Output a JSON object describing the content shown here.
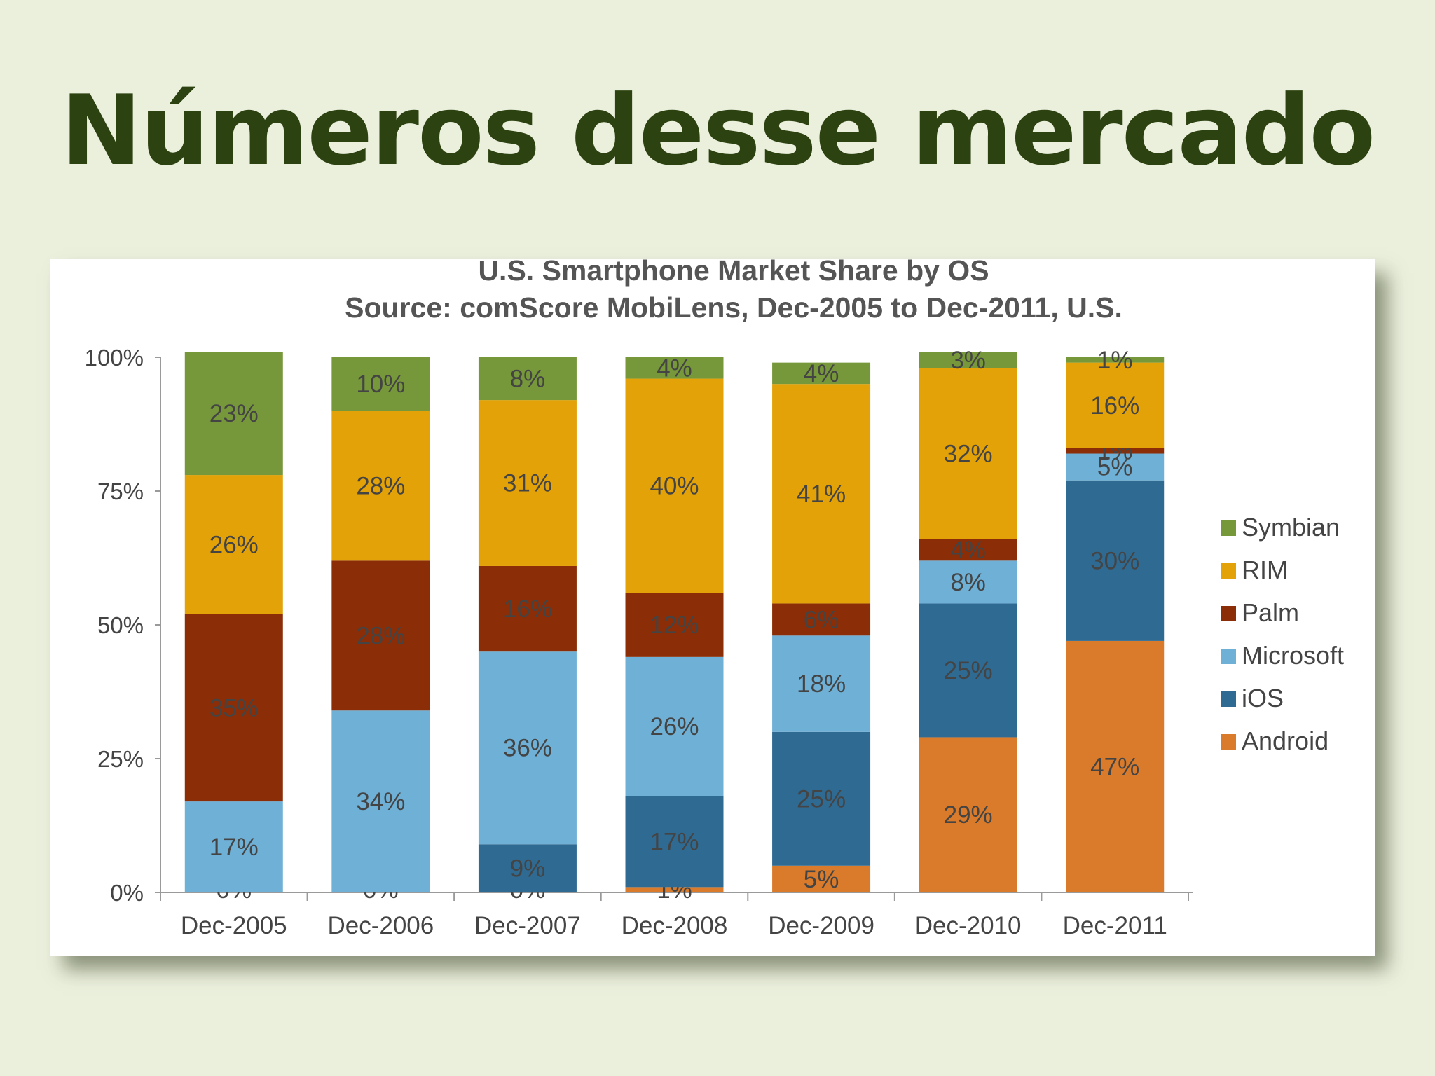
{
  "slide": {
    "title": "Números desse mercado"
  },
  "chart_data": {
    "type": "bar",
    "stacked": true,
    "title": "U.S. Smartphone Market Share by OS",
    "subtitle": "Source: comScore MobiLens, Dec-2005 to Dec-2011, U.S.",
    "categories": [
      "Dec-2005",
      "Dec-2006",
      "Dec-2007",
      "Dec-2008",
      "Dec-2009",
      "Dec-2010",
      "Dec-2011"
    ],
    "ylim": [
      0,
      100
    ],
    "yticks": [
      "0%",
      "25%",
      "50%",
      "75%",
      "100%"
    ],
    "legend_position": "right",
    "series": [
      {
        "name": "Android",
        "color": "#d97b2b",
        "values": [
          0,
          0,
          0,
          1,
          5,
          29,
          47
        ],
        "labels": [
          "0%",
          "0%",
          "0%",
          "1%",
          "5%",
          "29%",
          "47%"
        ]
      },
      {
        "name": "iOS",
        "color": "#2f6a92",
        "values": [
          0,
          0,
          9,
          17,
          25,
          25,
          30
        ],
        "labels": [
          "",
          "",
          "9%",
          "17%",
          "25%",
          "25%",
          "30%"
        ]
      },
      {
        "name": "Microsoft",
        "color": "#6fb0d6",
        "values": [
          17,
          34,
          36,
          26,
          18,
          8,
          5
        ],
        "labels": [
          "17%",
          "34%",
          "36%",
          "26%",
          "18%",
          "8%",
          "5%"
        ]
      },
      {
        "name": "Palm",
        "color": "#8b2d06",
        "values": [
          35,
          28,
          16,
          12,
          6,
          4,
          1
        ],
        "labels": [
          "35%",
          "28%",
          "16%",
          "12%",
          "6%",
          "4%",
          "1%"
        ]
      },
      {
        "name": "RIM",
        "color": "#e3a207",
        "values": [
          26,
          28,
          31,
          40,
          41,
          32,
          16
        ],
        "labels": [
          "26%",
          "28%",
          "31%",
          "40%",
          "41%",
          "32%",
          "16%"
        ]
      },
      {
        "name": "Symbian",
        "color": "#76983a",
        "values": [
          23,
          10,
          8,
          4,
          4,
          3,
          1
        ],
        "labels": [
          "23%",
          "10%",
          "8%",
          "4%",
          "4%",
          "3%",
          "1%"
        ]
      }
    ],
    "legend_order": [
      "Symbian",
      "RIM",
      "Palm",
      "Microsoft",
      "iOS",
      "Android"
    ]
  }
}
